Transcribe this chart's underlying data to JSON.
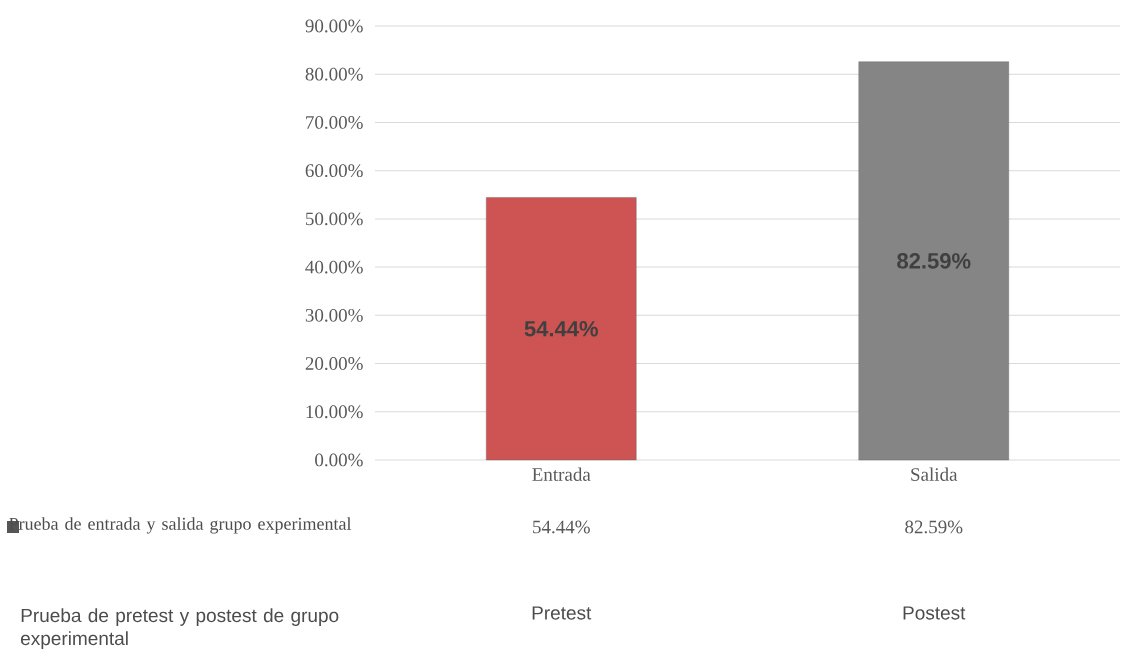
{
  "chart_data": {
    "type": "bar",
    "categories": [
      "Entrada",
      "Salida"
    ],
    "series": [
      {
        "name": "Prueba de entrada y salida grupo experimental",
        "colors": [
          "#cd5452",
          "#858585"
        ],
        "values": [
          54.44,
          82.59
        ],
        "value_labels": [
          "54.44%",
          "82.59%"
        ]
      }
    ],
    "ylim": [
      0,
      90
    ],
    "yticks": [
      {
        "value": 0,
        "label": "0.00%"
      },
      {
        "value": 10,
        "label": "10.00%"
      },
      {
        "value": 20,
        "label": "20.00%"
      },
      {
        "value": 30,
        "label": "30.00%"
      },
      {
        "value": 40,
        "label": "40.00%"
      },
      {
        "value": 50,
        "label": "50.00%"
      },
      {
        "value": 60,
        "label": "60.00%"
      },
      {
        "value": 70,
        "label": "70.00%"
      },
      {
        "value": 80,
        "label": "80.00%"
      },
      {
        "value": 90,
        "label": "90.00%"
      }
    ],
    "grid": "y",
    "legend": "bottom",
    "annotations": [
      "Prueba de pretest y postest de grupo experimental",
      "Pretest",
      "Postest"
    ]
  }
}
